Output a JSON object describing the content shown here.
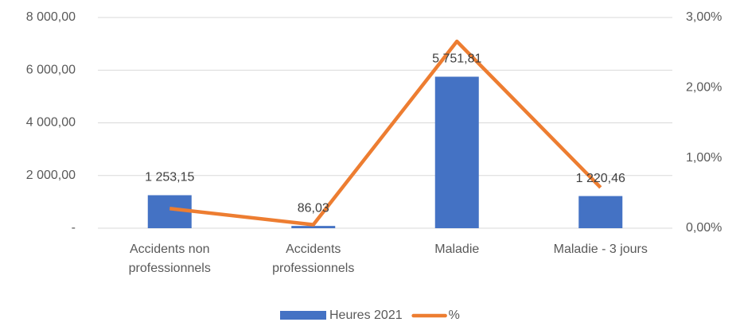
{
  "chart_data": {
    "type": "bar_line",
    "categories": [
      "Accidents non professionnels",
      "Accidents professionnels",
      "Maladie",
      "Maladie - 3 jours"
    ],
    "series": [
      {
        "name": "Heures 2021",
        "type": "bar",
        "color": "#4472c4",
        "values": [
          1253.15,
          86.03,
          5751.81,
          1220.46
        ],
        "value_labels": [
          "1 253,15",
          "86,03",
          "5 751,81",
          "1 220,46"
        ]
      },
      {
        "name": "%",
        "type": "line",
        "axis": "y2",
        "color": "#ed7d31",
        "values": [
          0.28,
          0.05,
          2.66,
          0.58
        ]
      }
    ],
    "ylim": [
      0,
      8000
    ],
    "yticks": [
      {
        "value": 0,
        "label": "-"
      },
      {
        "value": 2000,
        "label": "2 000,00"
      },
      {
        "value": 4000,
        "label": "4 000,00"
      },
      {
        "value": 6000,
        "label": "6 000,00"
      },
      {
        "value": 8000,
        "label": "8 000,00"
      }
    ],
    "y2lim": [
      0,
      3
    ],
    "y2ticks": [
      {
        "value": 0,
        "label": "0,00%"
      },
      {
        "value": 1,
        "label": "1,00%"
      },
      {
        "value": 2,
        "label": "2,00%"
      },
      {
        "value": 3,
        "label": "3,00%"
      }
    ],
    "grid": true,
    "legend": "bottom"
  }
}
